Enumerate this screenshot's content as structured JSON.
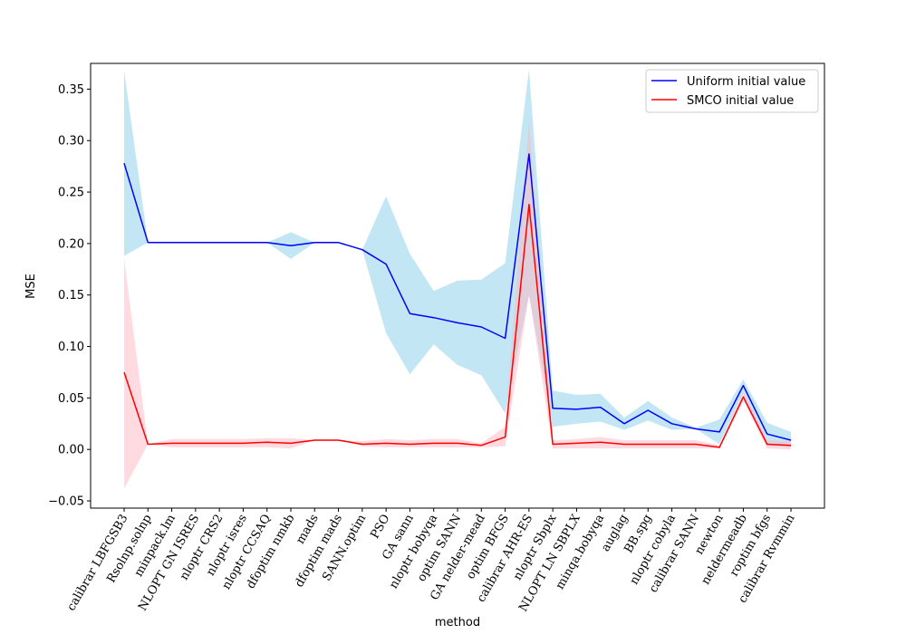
{
  "chart_data": {
    "type": "line",
    "title": "",
    "xlabel": "method",
    "ylabel": "MSE",
    "ylim": [
      -0.057,
      0.375
    ],
    "yticks": [
      -0.05,
      0.0,
      0.05,
      0.1,
      0.15,
      0.2,
      0.25,
      0.3,
      0.35
    ],
    "ytick_labels": [
      "−0.05",
      "0.00",
      "0.05",
      "0.10",
      "0.15",
      "0.20",
      "0.25",
      "0.30",
      "0.35"
    ],
    "categories": [
      "calibrar LBFGSB3",
      "Rsolnp.solnp",
      "minpack.lm",
      "NLOPT GN ISRES",
      "nloptr CRS2",
      "nloptr isres",
      "nloptr CCSAQ",
      "dfoptim nmkb",
      "mads",
      "dfoptim mads",
      "SANN.optim",
      "PSO",
      "GA sann",
      "nloptr bobyqa",
      "optim SANN",
      "GA nelder-mead",
      "optim BFGS",
      "calibrar AHR-ES",
      "nloptr Sbplx",
      "NLOPT LN SBPLX",
      "minqa.bobyqa",
      "auglag",
      "BB.spg",
      "nloptr cobyla",
      "calibrar SANN",
      "newton",
      "neldermeadb",
      "roptim bfgs",
      "calibrar Rvmmin"
    ],
    "legend": {
      "location": "upper-right"
    },
    "series": [
      {
        "name": "Uniform initial value",
        "color": "#0000ff",
        "band_color": "#87ceeb",
        "values": [
          0.278,
          0.201,
          0.201,
          0.201,
          0.201,
          0.201,
          0.201,
          0.198,
          0.201,
          0.201,
          0.194,
          0.18,
          0.132,
          0.128,
          0.123,
          0.119,
          0.108,
          0.287,
          0.04,
          0.039,
          0.041,
          0.025,
          0.038,
          0.025,
          0.02,
          0.017,
          0.062,
          0.015,
          0.009
        ],
        "lower": [
          0.188,
          0.201,
          0.201,
          0.201,
          0.201,
          0.201,
          0.201,
          0.185,
          0.201,
          0.201,
          0.194,
          0.113,
          0.073,
          0.102,
          0.082,
          0.072,
          0.035,
          0.15,
          0.022,
          0.025,
          0.027,
          0.019,
          0.028,
          0.019,
          0.02,
          0.005,
          0.055,
          0.004,
          0.002
        ],
        "upper": [
          0.368,
          0.201,
          0.201,
          0.201,
          0.201,
          0.201,
          0.201,
          0.211,
          0.201,
          0.201,
          0.194,
          0.246,
          0.19,
          0.154,
          0.164,
          0.165,
          0.181,
          0.369,
          0.057,
          0.053,
          0.054,
          0.031,
          0.047,
          0.031,
          0.021,
          0.029,
          0.068,
          0.026,
          0.017
        ]
      },
      {
        "name": "SMCO initial value",
        "color": "#ff0000",
        "band_color": "#ffb6c1",
        "values": [
          0.075,
          0.005,
          0.006,
          0.006,
          0.006,
          0.006,
          0.007,
          0.006,
          0.009,
          0.009,
          0.005,
          0.006,
          0.005,
          0.006,
          0.006,
          0.004,
          0.012,
          0.238,
          0.005,
          0.006,
          0.007,
          0.005,
          0.005,
          0.005,
          0.005,
          0.002,
          0.051,
          0.005,
          0.004
        ],
        "lower": [
          -0.038,
          0.005,
          0.002,
          0.002,
          0.002,
          0.002,
          0.002,
          0.001,
          0.009,
          0.009,
          0.003,
          0.002,
          0.002,
          0.002,
          0.002,
          0.002,
          0.003,
          0.15,
          0.001,
          0.001,
          0.001,
          0.001,
          0.001,
          0.001,
          0.001,
          0.001,
          0.047,
          0.001,
          0.0
        ],
        "upper": [
          0.185,
          0.005,
          0.01,
          0.01,
          0.01,
          0.01,
          0.011,
          0.011,
          0.009,
          0.009,
          0.008,
          0.01,
          0.009,
          0.01,
          0.01,
          0.006,
          0.022,
          0.32,
          0.009,
          0.01,
          0.012,
          0.009,
          0.009,
          0.009,
          0.009,
          0.004,
          0.056,
          0.009,
          0.008
        ]
      }
    ]
  }
}
